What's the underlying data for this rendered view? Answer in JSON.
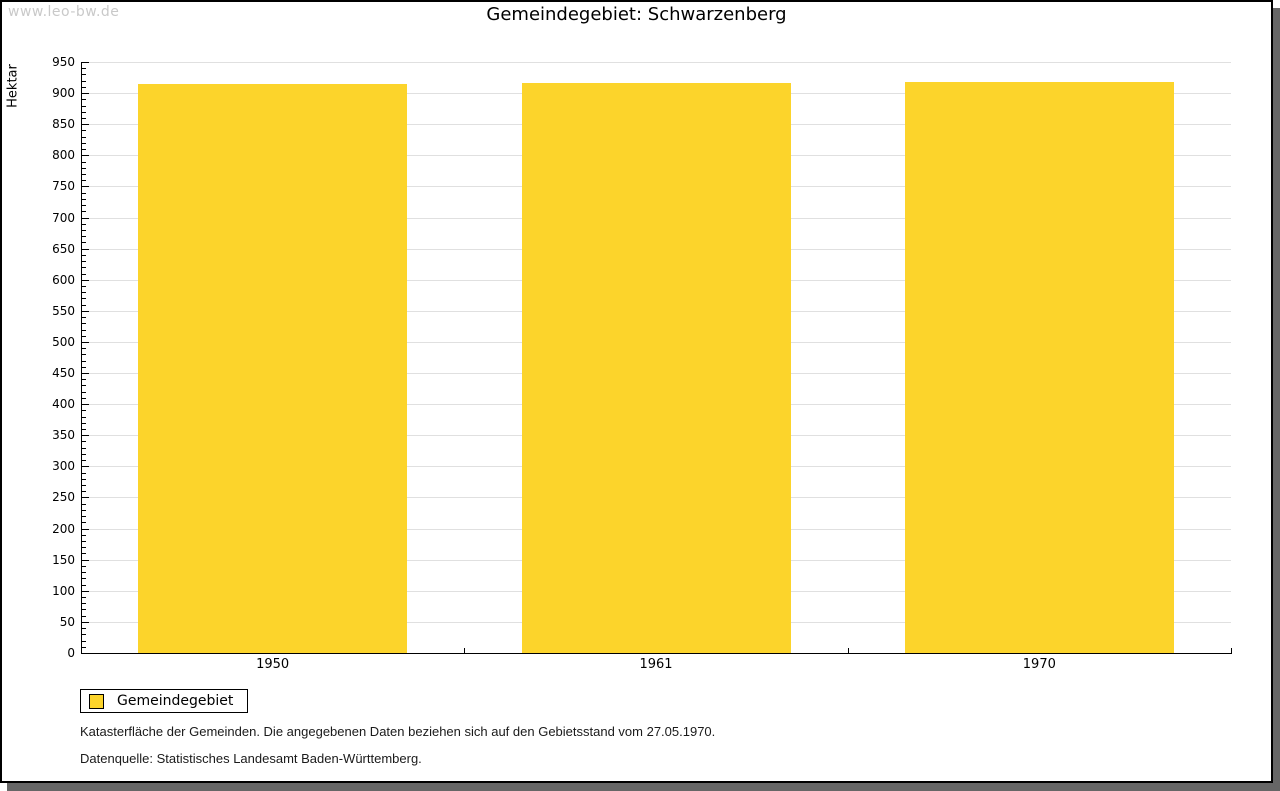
{
  "watermark": "www.leo-bw.de",
  "title": "Gemeindegebiet: Schwarzenberg",
  "legend": {
    "items": [
      {
        "label": "Gemeindegebiet",
        "color": "#fcd42b"
      }
    ]
  },
  "footnotes": [
    "Katasterfläche der Gemeinden. Die angegebenen Daten beziehen sich auf den Gebietsstand vom 27.05.1970.",
    "Datenquelle: Statistisches Landesamt Baden-Württemberg."
  ],
  "chart_data": {
    "type": "bar",
    "title": "Gemeindegebiet: Schwarzenberg",
    "categories": [
      "1950",
      "1961",
      "1970"
    ],
    "series": [
      {
        "name": "Gemeindegebiet",
        "values": [
          915,
          917,
          918
        ],
        "color": "#fcd42b"
      }
    ],
    "xlabel": "",
    "ylabel": "Hektar",
    "ylim": [
      0,
      950
    ],
    "ytick_major": 50,
    "ytick_minor": 10,
    "grid": true,
    "grid_color": "#e0e0e0",
    "legend_position": "bottom-left"
  },
  "colors": {
    "bar": "#fcd42b",
    "grid": "#e0e0e0",
    "axis": "#000000",
    "watermark": "#c9c9c9",
    "frame_shadow": "#666666"
  }
}
